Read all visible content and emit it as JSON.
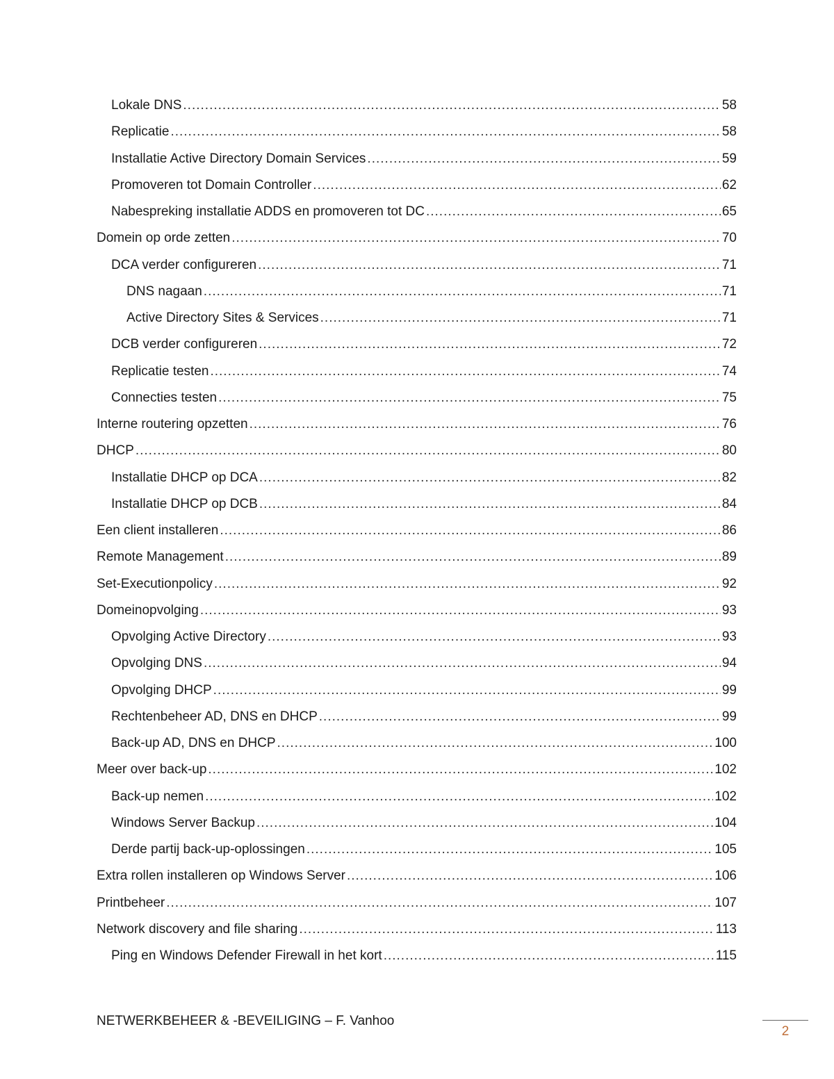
{
  "toc": [
    {
      "level": 2,
      "title": "Lokale DNS",
      "page": "58"
    },
    {
      "level": 2,
      "title": "Replicatie",
      "page": "58"
    },
    {
      "level": 2,
      "title": "Installatie Active Directory Domain Services",
      "page": "59"
    },
    {
      "level": 2,
      "title": "Promoveren tot Domain Controller",
      "page": "62"
    },
    {
      "level": 2,
      "title": "Nabespreking installatie ADDS en promoveren tot DC",
      "page": "65"
    },
    {
      "level": 1,
      "title": "Domein op orde zetten",
      "page": "70"
    },
    {
      "level": 2,
      "title": "DCA verder configureren",
      "page": "71"
    },
    {
      "level": 3,
      "title": "DNS nagaan",
      "page": "71"
    },
    {
      "level": 3,
      "title": "Active Directory Sites & Services",
      "page": "71"
    },
    {
      "level": 2,
      "title": "DCB verder configureren",
      "page": "72"
    },
    {
      "level": 2,
      "title": "Replicatie testen",
      "page": "74"
    },
    {
      "level": 2,
      "title": "Connecties testen",
      "page": "75"
    },
    {
      "level": 1,
      "title": "Interne routering opzetten",
      "page": "76"
    },
    {
      "level": 1,
      "title": "DHCP",
      "page": "80"
    },
    {
      "level": 2,
      "title": "Installatie DHCP op DCA",
      "page": "82"
    },
    {
      "level": 2,
      "title": "Installatie DHCP op DCB",
      "page": "84"
    },
    {
      "level": 1,
      "title": "Een client installeren",
      "page": "86"
    },
    {
      "level": 1,
      "title": "Remote Management",
      "page": "89"
    },
    {
      "level": 1,
      "title": "Set-Executionpolicy",
      "page": "92"
    },
    {
      "level": 1,
      "title": "Domeinopvolging",
      "page": "93"
    },
    {
      "level": 2,
      "title": "Opvolging Active Directory",
      "page": "93"
    },
    {
      "level": 2,
      "title": "Opvolging DNS",
      "page": "94"
    },
    {
      "level": 2,
      "title": "Opvolging DHCP",
      "page": "99"
    },
    {
      "level": 2,
      "title": "Rechtenbeheer AD, DNS en DHCP",
      "page": "99"
    },
    {
      "level": 2,
      "title": "Back-up AD, DNS en DHCP",
      "page": "100"
    },
    {
      "level": 1,
      "title": "Meer over back-up",
      "page": "102"
    },
    {
      "level": 2,
      "title": "Back-up nemen",
      "page": "102"
    },
    {
      "level": 2,
      "title": "Windows Server Backup",
      "page": "104"
    },
    {
      "level": 2,
      "title": "Derde partij back-up-oplossingen",
      "page": "105"
    },
    {
      "level": 1,
      "title": "Extra rollen installeren op Windows Server",
      "page": "106"
    },
    {
      "level": 1,
      "title": "Printbeheer",
      "page": "107"
    },
    {
      "level": 1,
      "title": "Network discovery and file sharing",
      "page": "113"
    },
    {
      "level": 2,
      "title": "Ping en Windows Defender Firewall in het kort",
      "page": "115"
    }
  ],
  "footer": {
    "text": "NETWERKBEHEER & -BEVEILIGING – F. Vanhoo",
    "page_number": "2"
  },
  "colors": {
    "page_number": "#c0703a"
  }
}
